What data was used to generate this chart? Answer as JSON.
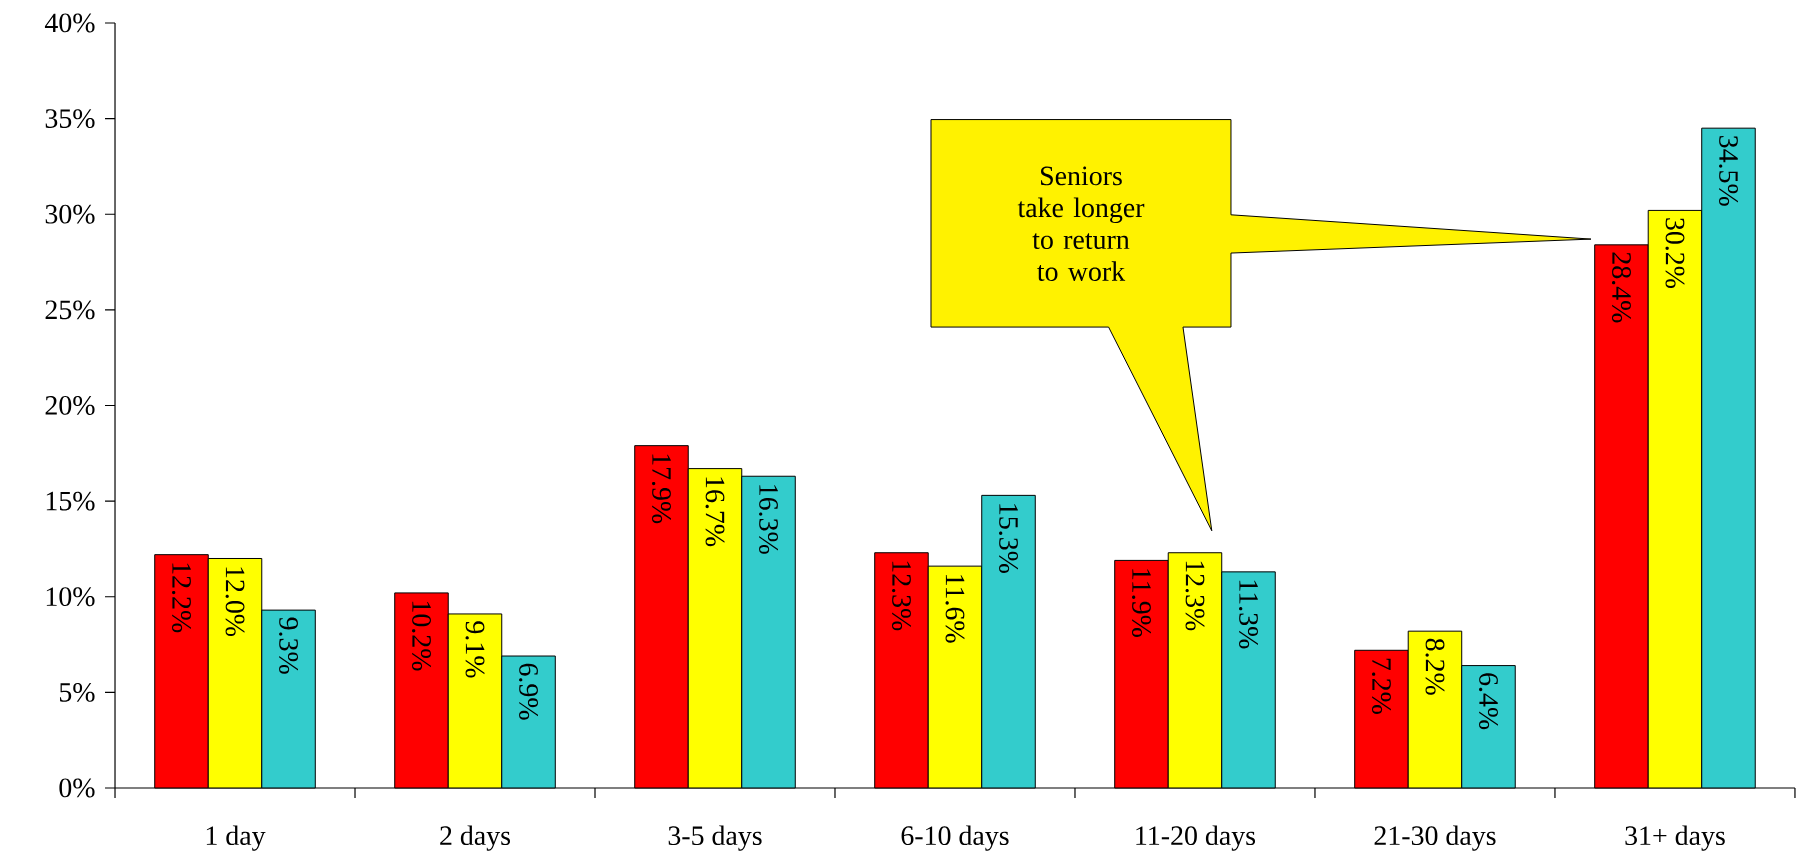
{
  "chart_data": {
    "type": "bar",
    "categories": [
      "1 day",
      "2 days",
      "3-5 days",
      "6-10 days",
      "11-20 days",
      "21-30 days",
      "31+ days"
    ],
    "series": [
      {
        "color": "#ff0000",
        "values": [
          12.2,
          10.2,
          17.9,
          12.3,
          11.9,
          7.2,
          28.4
        ],
        "value_labels": [
          "12.2%",
          "10.2%",
          "17.9%",
          "12.3%",
          "11.9%",
          "7.2%",
          "28.4%"
        ]
      },
      {
        "color": "#ffff00",
        "values": [
          12.0,
          9.1,
          16.7,
          11.6,
          12.3,
          8.2,
          30.2
        ],
        "value_labels": [
          "12.0%",
          "9.1%",
          "16.7%",
          "11.6%",
          "12.3%",
          "8.2%",
          "30.2%"
        ]
      },
      {
        "color": "#33cccc",
        "values": [
          9.3,
          6.9,
          16.3,
          15.3,
          11.3,
          6.4,
          34.5
        ],
        "value_labels": [
          "9.3%",
          "6.9%",
          "16.3%",
          "15.3%",
          "11.3%",
          "6.4%",
          "34.5%"
        ]
      }
    ],
    "ylim": [
      0,
      40
    ],
    "yticks": [
      {
        "value": 0,
        "label": "0%"
      },
      {
        "value": 5,
        "label": "5%"
      },
      {
        "value": 10,
        "label": "10%"
      },
      {
        "value": 15,
        "label": "15%"
      },
      {
        "value": 20,
        "label": "20%"
      },
      {
        "value": 25,
        "label": "25%"
      },
      {
        "value": 30,
        "label": "30%"
      },
      {
        "value": 35,
        "label": "35%"
      },
      {
        "value": 40,
        "label": "40%"
      }
    ],
    "grid": false,
    "annotations": [
      "Seniors take longer to return to work"
    ]
  }
}
